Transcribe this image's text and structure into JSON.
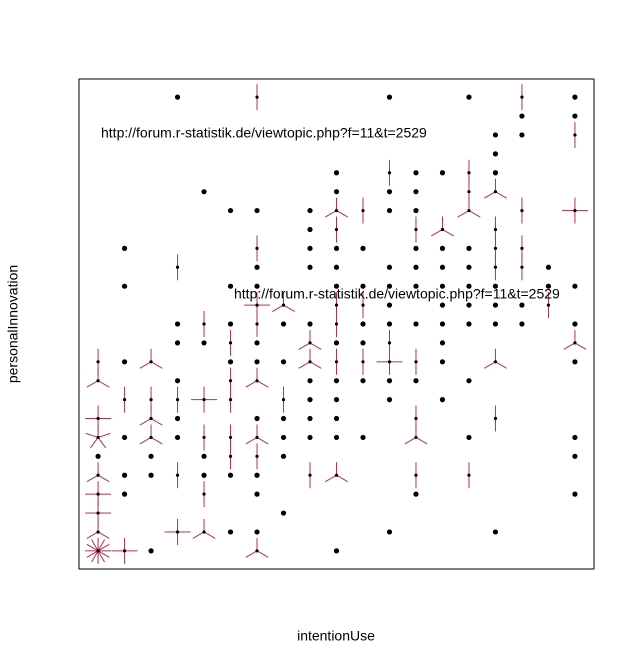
{
  "chart_data": {
    "type": "sunflower",
    "x_label": "intentionUse",
    "y_label": "personalInnovation",
    "annotations": [
      "http://forum.r-statistik.de/viewtopic.php?f=11&t=2529",
      "http://forum.r-statistik.de/viewtopic.php?f=11&t=2529"
    ],
    "xlim": [
      0.28,
      19.72
    ],
    "ylim": [
      0.04,
      25.96
    ],
    "point_color": "#000000",
    "petal_color": "#b0305a",
    "x": [
      4,
      7,
      12,
      15,
      17,
      19,
      17,
      19,
      16,
      17,
      19,
      16,
      10,
      12,
      13,
      14,
      15,
      16,
      5,
      10,
      12,
      13,
      15,
      16,
      6,
      7,
      9,
      10,
      11,
      12,
      13,
      15,
      17,
      19,
      9,
      10,
      13,
      14,
      16,
      2,
      7,
      9,
      10,
      11,
      13,
      14,
      15,
      16,
      17,
      4,
      7,
      9,
      10,
      12,
      13,
      14,
      15,
      16,
      17,
      18,
      2,
      6,
      7,
      10,
      11,
      12,
      13,
      14,
      15,
      16,
      18,
      19,
      7,
      8,
      10,
      11,
      12,
      14,
      15,
      16,
      17,
      18,
      4,
      5,
      6,
      7,
      8,
      9,
      10,
      11,
      12,
      13,
      14,
      15,
      16,
      17,
      19,
      4,
      5,
      6,
      7,
      9,
      10,
      11,
      12,
      14,
      19,
      1,
      2,
      3,
      6,
      7,
      8,
      9,
      10,
      11,
      12,
      13,
      14,
      16,
      19,
      1,
      4,
      6,
      7,
      9,
      10,
      11,
      12,
      13,
      15,
      2,
      3,
      4,
      5,
      6,
      8,
      9,
      10,
      12,
      14,
      1,
      3,
      4,
      7,
      8,
      9,
      10,
      13,
      16,
      1,
      2,
      3,
      4,
      5,
      6,
      7,
      8,
      9,
      10,
      11,
      13,
      15,
      19,
      1,
      3,
      5,
      6,
      7,
      8,
      19,
      1,
      2,
      3,
      4,
      5,
      6,
      7,
      9,
      10,
      13,
      15,
      1,
      2,
      5,
      7,
      13,
      19,
      1,
      8,
      1,
      4,
      5,
      6,
      7,
      12,
      16,
      1,
      2,
      3,
      7,
      10
    ],
    "y": [
      25,
      25,
      25,
      25,
      25,
      25,
      24,
      24,
      23,
      23,
      23,
      22,
      21,
      21,
      21,
      21,
      21,
      21,
      20,
      20,
      20,
      20,
      20,
      20,
      19,
      19,
      19,
      19,
      19,
      19,
      19,
      19,
      19,
      19,
      18,
      18,
      18,
      18,
      18,
      17,
      17,
      17,
      17,
      17,
      17,
      17,
      17,
      17,
      17,
      16,
      16,
      16,
      16,
      16,
      16,
      16,
      16,
      16,
      16,
      16,
      15,
      15,
      15,
      15,
      15,
      15,
      15,
      15,
      15,
      15,
      15,
      15,
      14,
      14,
      14,
      14,
      14,
      14,
      14,
      14,
      14,
      14,
      13,
      13,
      13,
      13,
      13,
      13,
      13,
      13,
      13,
      13,
      13,
      13,
      13,
      13,
      13,
      12,
      12,
      12,
      12,
      12,
      12,
      12,
      12,
      12,
      12,
      11,
      11,
      11,
      11,
      11,
      11,
      11,
      11,
      11,
      11,
      11,
      11,
      11,
      11,
      10,
      10,
      10,
      10,
      10,
      10,
      10,
      10,
      10,
      10,
      9,
      9,
      9,
      9,
      9,
      9,
      9,
      9,
      9,
      9,
      8,
      8,
      8,
      8,
      8,
      8,
      8,
      8,
      8,
      7,
      7,
      7,
      7,
      7,
      7,
      7,
      7,
      7,
      7,
      7,
      7,
      7,
      7,
      6,
      6,
      6,
      6,
      6,
      6,
      6,
      5,
      5,
      5,
      5,
      5,
      5,
      5,
      5,
      5,
      5,
      5,
      4,
      4,
      4,
      4,
      4,
      4,
      3,
      3,
      2,
      2,
      2,
      2,
      2,
      2,
      2,
      1,
      1,
      1,
      1,
      1
    ],
    "counts": [
      1,
      2,
      1,
      1,
      2,
      1,
      1,
      1,
      1,
      1,
      2,
      1,
      1,
      2,
      1,
      1,
      2,
      1,
      1,
      1,
      1,
      1,
      2,
      3,
      1,
      1,
      1,
      3,
      2,
      1,
      1,
      3,
      2,
      4,
      1,
      2,
      2,
      3,
      2,
      1,
      2,
      1,
      1,
      1,
      1,
      1,
      1,
      2,
      2,
      2,
      1,
      1,
      1,
      1,
      1,
      1,
      1,
      2,
      2,
      1,
      1,
      1,
      1,
      1,
      1,
      1,
      1,
      1,
      1,
      1,
      1,
      1,
      4,
      3,
      2,
      2,
      1,
      1,
      1,
      1,
      1,
      2,
      1,
      2,
      1,
      2,
      1,
      1,
      2,
      1,
      1,
      1,
      1,
      1,
      1,
      1,
      1,
      1,
      1,
      2,
      1,
      3,
      1,
      1,
      2,
      1,
      3,
      2,
      1,
      3,
      1,
      1,
      1,
      3,
      2,
      2,
      4,
      2,
      1,
      3,
      1,
      3,
      1,
      2,
      3,
      1,
      1,
      1,
      1,
      1,
      1,
      2,
      2,
      2,
      4,
      2,
      2,
      1,
      1,
      1,
      1,
      4,
      3,
      1,
      1,
      1,
      1,
      1,
      2,
      2,
      5,
      1,
      3,
      1,
      2,
      2,
      3,
      1,
      1,
      1,
      1,
      3,
      1,
      1,
      1,
      1,
      1,
      2,
      2,
      1,
      1,
      3,
      1,
      1,
      2,
      1,
      1,
      1,
      2,
      3,
      2,
      2,
      4,
      1,
      2,
      1,
      1,
      1,
      4,
      1,
      3,
      4,
      3,
      1,
      1,
      1,
      1,
      12,
      4,
      1,
      3,
      1
    ]
  }
}
